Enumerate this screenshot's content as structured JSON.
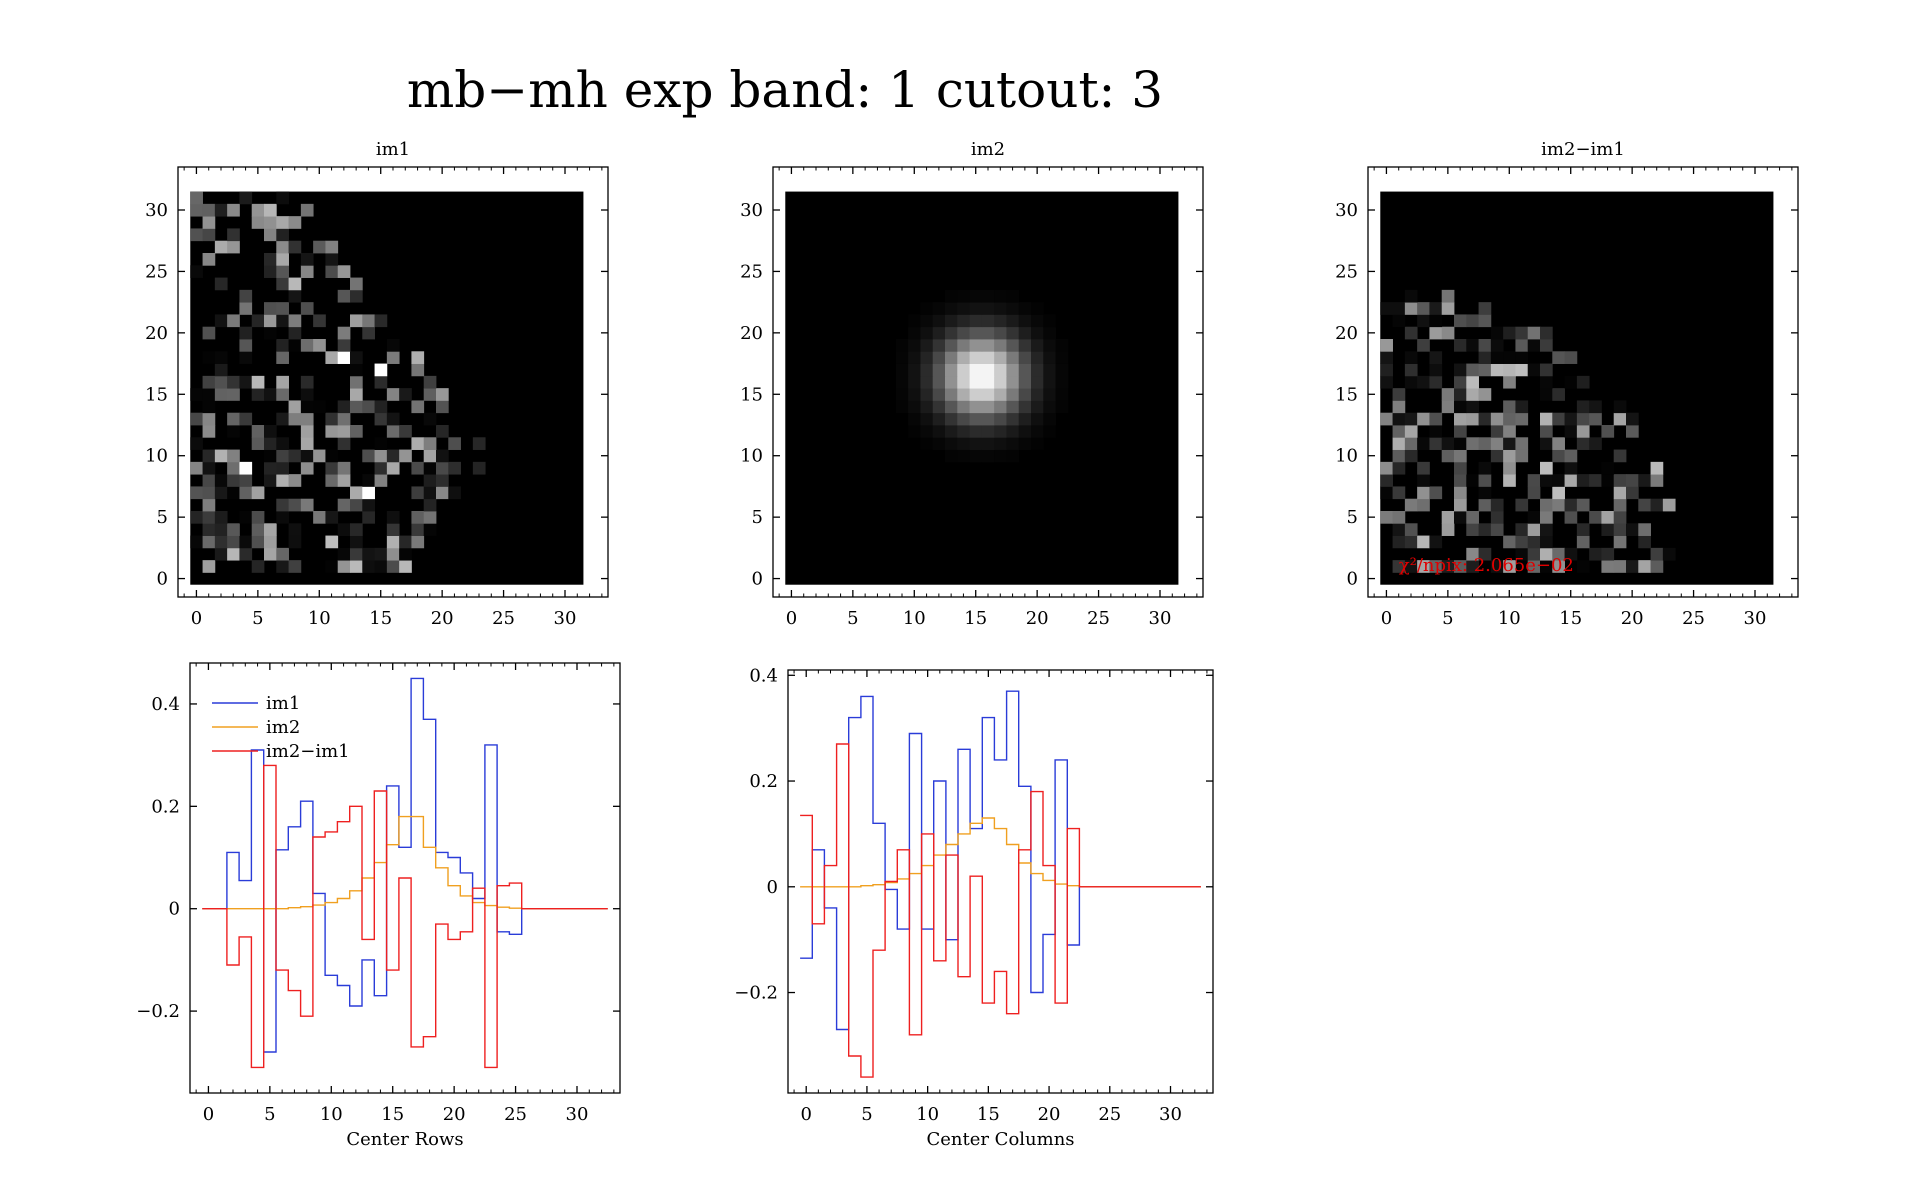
{
  "page": {
    "title": "mb−mh exp band: 1 cutout: 3"
  },
  "colors": {
    "im1": "#2a3cd8",
    "im2": "#f0a020",
    "diff": "#ee2020",
    "annotation": "#e00000"
  },
  "chart_data": [
    {
      "type": "heatmap",
      "title": "im1",
      "xlim": [
        -1.5,
        33.5
      ],
      "ylim": [
        -1.5,
        33.5
      ],
      "x_ticks": [
        0,
        5,
        10,
        15,
        20,
        25,
        30
      ],
      "y_ticks": [
        0,
        5,
        10,
        15,
        20,
        25,
        30
      ],
      "colormap": "grayscale",
      "grid_size": [
        32,
        32
      ],
      "content": "noise-dominated pixels concentrated in a left wedge; brightest pixels near (12,18), (15,18), (4,9), (14,7)"
    },
    {
      "type": "heatmap",
      "title": "im2",
      "xlim": [
        -1.5,
        33.5
      ],
      "ylim": [
        -1.5,
        33.5
      ],
      "x_ticks": [
        0,
        5,
        10,
        15,
        20,
        25,
        30
      ],
      "y_ticks": [
        0,
        5,
        10,
        15,
        20,
        25,
        30
      ],
      "colormap": "grayscale",
      "grid_size": [
        32,
        32
      ],
      "content": "smooth round source centered near (15.5, 16.5)"
    },
    {
      "type": "heatmap",
      "title": "im2−im1",
      "xlim": [
        -1.5,
        33.5
      ],
      "ylim": [
        -1.5,
        33.5
      ],
      "x_ticks": [
        0,
        5,
        10,
        15,
        20,
        25,
        30
      ],
      "y_ticks": [
        0,
        5,
        10,
        15,
        20,
        25,
        30
      ],
      "colormap": "grayscale",
      "grid_size": [
        32,
        32
      ],
      "annotation": "χ²/npix: 2.065e−02",
      "content": "residual noise in a quarter-disk region at the left"
    },
    {
      "type": "line",
      "step": true,
      "xlabel": "Center Rows",
      "ylabel": "",
      "xlim": [
        -1.5,
        33.5
      ],
      "ylim": [
        -0.36,
        0.48
      ],
      "x_ticks": [
        0,
        5,
        10,
        15,
        20,
        25,
        30
      ],
      "y_ticks": [
        -0.2,
        0,
        0.2,
        0.4
      ],
      "y_tick_labels": [
        "−0.2",
        "0",
        "0.2",
        "0.4"
      ],
      "legend": "top-left",
      "series": [
        {
          "name": "im1",
          "color_key": "im1",
          "x": [
            0,
            1,
            2,
            3,
            4,
            5,
            6,
            7,
            8,
            9,
            10,
            11,
            12,
            13,
            14,
            15,
            16,
            17,
            18,
            19,
            20,
            21,
            22,
            23,
            24,
            25,
            26,
            27,
            28,
            29,
            30,
            31,
            32
          ],
          "values": [
            0,
            0,
            0.11,
            0.055,
            0.31,
            -0.28,
            0.115,
            0.16,
            0.21,
            0.03,
            -0.13,
            -0.15,
            -0.19,
            -0.1,
            -0.17,
            0.24,
            0.12,
            0.45,
            0.37,
            0.11,
            0.1,
            0.07,
            0.02,
            0.32,
            -0.045,
            -0.05,
            0,
            0,
            0,
            0,
            0,
            0,
            0
          ]
        },
        {
          "name": "im2",
          "color_key": "im2",
          "x": [
            0,
            1,
            2,
            3,
            4,
            5,
            6,
            7,
            8,
            9,
            10,
            11,
            12,
            13,
            14,
            15,
            16,
            17,
            18,
            19,
            20,
            21,
            22,
            23,
            24,
            25,
            26,
            27,
            28,
            29,
            30,
            31,
            32
          ],
          "values": [
            0,
            0,
            0,
            0,
            0,
            0,
            0,
            0.002,
            0.004,
            0.007,
            0.012,
            0.02,
            0.035,
            0.06,
            0.09,
            0.125,
            0.18,
            0.18,
            0.12,
            0.08,
            0.045,
            0.025,
            0.012,
            0.006,
            0.003,
            0.001,
            0,
            0,
            0,
            0,
            0,
            0,
            0
          ]
        },
        {
          "name": "im2−im1",
          "color_key": "diff",
          "x": [
            0,
            1,
            2,
            3,
            4,
            5,
            6,
            7,
            8,
            9,
            10,
            11,
            12,
            13,
            14,
            15,
            16,
            17,
            18,
            19,
            20,
            21,
            22,
            23,
            24,
            25,
            26,
            27,
            28,
            29,
            30,
            31,
            32
          ],
          "values": [
            0,
            0,
            -0.11,
            -0.055,
            -0.31,
            0.28,
            -0.12,
            -0.16,
            -0.21,
            0.14,
            0.15,
            0.17,
            0.2,
            -0.06,
            0.23,
            -0.12,
            0.06,
            -0.27,
            -0.25,
            -0.03,
            -0.06,
            -0.045,
            0.04,
            -0.31,
            0.045,
            0.05,
            0,
            0,
            0,
            0,
            0,
            0,
            0
          ]
        }
      ]
    },
    {
      "type": "line",
      "step": true,
      "xlabel": "Center Columns",
      "ylabel": "",
      "xlim": [
        -1.5,
        33.5
      ],
      "ylim": [
        -0.39,
        0.41
      ],
      "x_ticks": [
        0,
        5,
        10,
        15,
        20,
        25,
        30
      ],
      "y_ticks": [
        -0.2,
        0,
        0.2,
        0.4
      ],
      "y_tick_labels": [
        "−0.2",
        "0",
        "0.2",
        "0.4"
      ],
      "series": [
        {
          "name": "im1",
          "color_key": "im1",
          "x": [
            0,
            1,
            2,
            3,
            4,
            5,
            6,
            7,
            8,
            9,
            10,
            11,
            12,
            13,
            14,
            15,
            16,
            17,
            18,
            19,
            20,
            21,
            22,
            23,
            24,
            25,
            26,
            27,
            28,
            29,
            30,
            31,
            32
          ],
          "values": [
            -0.135,
            0.07,
            -0.04,
            -0.27,
            0.32,
            0.36,
            0.12,
            -0.005,
            -0.08,
            0.29,
            -0.08,
            0.2,
            -0.1,
            0.26,
            0.11,
            0.32,
            0.24,
            0.37,
            0.19,
            -0.2,
            -0.09,
            0.24,
            -0.11,
            0,
            0,
            0,
            0,
            0,
            0,
            0,
            0,
            0,
            0
          ]
        },
        {
          "name": "im2",
          "color_key": "im2",
          "x": [
            0,
            1,
            2,
            3,
            4,
            5,
            6,
            7,
            8,
            9,
            10,
            11,
            12,
            13,
            14,
            15,
            16,
            17,
            18,
            19,
            20,
            21,
            22,
            23,
            24,
            25,
            26,
            27,
            28,
            29,
            30,
            31,
            32
          ],
          "values": [
            0,
            0,
            0,
            0,
            0,
            0.002,
            0.004,
            0.008,
            0.015,
            0.025,
            0.04,
            0.06,
            0.08,
            0.1,
            0.12,
            0.13,
            0.11,
            0.08,
            0.045,
            0.025,
            0.012,
            0.005,
            0.002,
            0,
            0,
            0,
            0,
            0,
            0,
            0,
            0,
            0,
            0
          ]
        },
        {
          "name": "im2−im1",
          "color_key": "diff",
          "x": [
            0,
            1,
            2,
            3,
            4,
            5,
            6,
            7,
            8,
            9,
            10,
            11,
            12,
            13,
            14,
            15,
            16,
            17,
            18,
            19,
            20,
            21,
            22,
            23,
            24,
            25,
            26,
            27,
            28,
            29,
            30,
            31,
            32
          ],
          "values": [
            0.135,
            -0.07,
            0.04,
            0.27,
            -0.32,
            -0.36,
            -0.12,
            0.01,
            0.07,
            -0.28,
            0.1,
            -0.14,
            0.06,
            -0.17,
            0.02,
            -0.22,
            -0.16,
            -0.24,
            0.07,
            0.18,
            0.04,
            -0.22,
            0.11,
            0,
            0,
            0,
            0,
            0,
            0,
            0,
            0,
            0,
            0
          ]
        }
      ]
    }
  ]
}
